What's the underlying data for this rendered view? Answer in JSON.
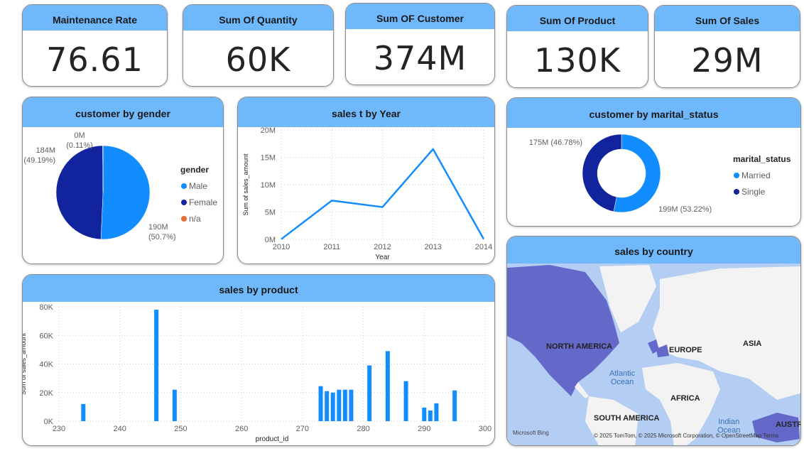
{
  "cards": [
    {
      "title": "Maintenance Rate",
      "value": "76.61"
    },
    {
      "title": "Sum Of Quantity",
      "value": "60K"
    },
    {
      "title": "Sum OF Customer",
      "value": "374M"
    },
    {
      "title": "Sum Of Product",
      "value": "130K"
    },
    {
      "title": "Sum Of Sales",
      "value": "29M"
    }
  ],
  "chart_data": [
    {
      "type": "pie",
      "title": "customer by gender",
      "legend_title": "gender",
      "categories": [
        "Male",
        "Female",
        "n/a"
      ],
      "values": [
        50.7,
        49.19,
        0.11
      ],
      "value_labels": [
        "190M\n(50.7%)",
        "184M\n(49.19%)",
        "0M\n(0.11%)"
      ],
      "colors": [
        "#118dff",
        "#12239e",
        "#e66c37"
      ]
    },
    {
      "type": "line",
      "title": "sales t by Year",
      "x_label": "Year",
      "y_label": "Sum of sales_amount",
      "x": [
        2010,
        2011,
        2012,
        2013,
        2014
      ],
      "values": [
        40000,
        7100000,
        5900000,
        16500000,
        50000
      ],
      "color": "#118dff",
      "xlim": [
        2010,
        2014
      ],
      "xticks": [
        2010,
        2011,
        2012,
        2013,
        2014
      ],
      "ylim": [
        0,
        20000000
      ],
      "yticks": [
        {
          "value": 0,
          "label": "0M"
        },
        {
          "value": 5000000,
          "label": "5M"
        },
        {
          "value": 10000000,
          "label": "10M"
        },
        {
          "value": 15000000,
          "label": "15M"
        },
        {
          "value": 20000000,
          "label": "20M"
        }
      ],
      "grid": true
    },
    {
      "type": "donut",
      "title": "customer by marital_status",
      "legend_title": "marital_status",
      "categories": [
        "Married",
        "Single"
      ],
      "values": [
        53.22,
        46.78
      ],
      "value_labels": [
        "199M (53.22%)",
        "175M (46.78%)"
      ],
      "colors": [
        "#118dff",
        "#12239e"
      ]
    },
    {
      "type": "bar",
      "title": "sales by product",
      "x_label": "product_id",
      "y_label": "Sum of sales_amount",
      "x": [
        234,
        246,
        249,
        273,
        274,
        275,
        276,
        277,
        278,
        281,
        284,
        287,
        290,
        291,
        292,
        295
      ],
      "values": [
        12000,
        78000,
        22000,
        24500,
        21000,
        20000,
        22000,
        22000,
        22000,
        39000,
        49000,
        28000,
        9500,
        7500,
        12500,
        21500
      ],
      "color": "#118dff",
      "xlim": [
        230,
        300
      ],
      "xticks": [
        230,
        240,
        250,
        260,
        270,
        280,
        290,
        300
      ],
      "ylim": [
        0,
        80000
      ],
      "yticks": [
        {
          "value": 0,
          "label": "0K"
        },
        {
          "value": 20000,
          "label": "20K"
        },
        {
          "value": 40000,
          "label": "40K"
        },
        {
          "value": 60000,
          "label": "60K"
        },
        {
          "value": 80000,
          "label": "80K"
        }
      ],
      "grid": true
    }
  ],
  "map": {
    "title": "sales by country",
    "labels": [
      "NORTH AMERICA",
      "EUROPE",
      "ASIA",
      "AFRICA",
      "SOUTH AMERICA",
      "Atlantic\nOcean",
      "Indian\nOcean",
      "AUSTRA"
    ],
    "attribution": "© 2025 TomTom, © 2025 Microsoft Corporation, © OpenStreetMap Terms",
    "logo": "Microsoft Bing"
  }
}
